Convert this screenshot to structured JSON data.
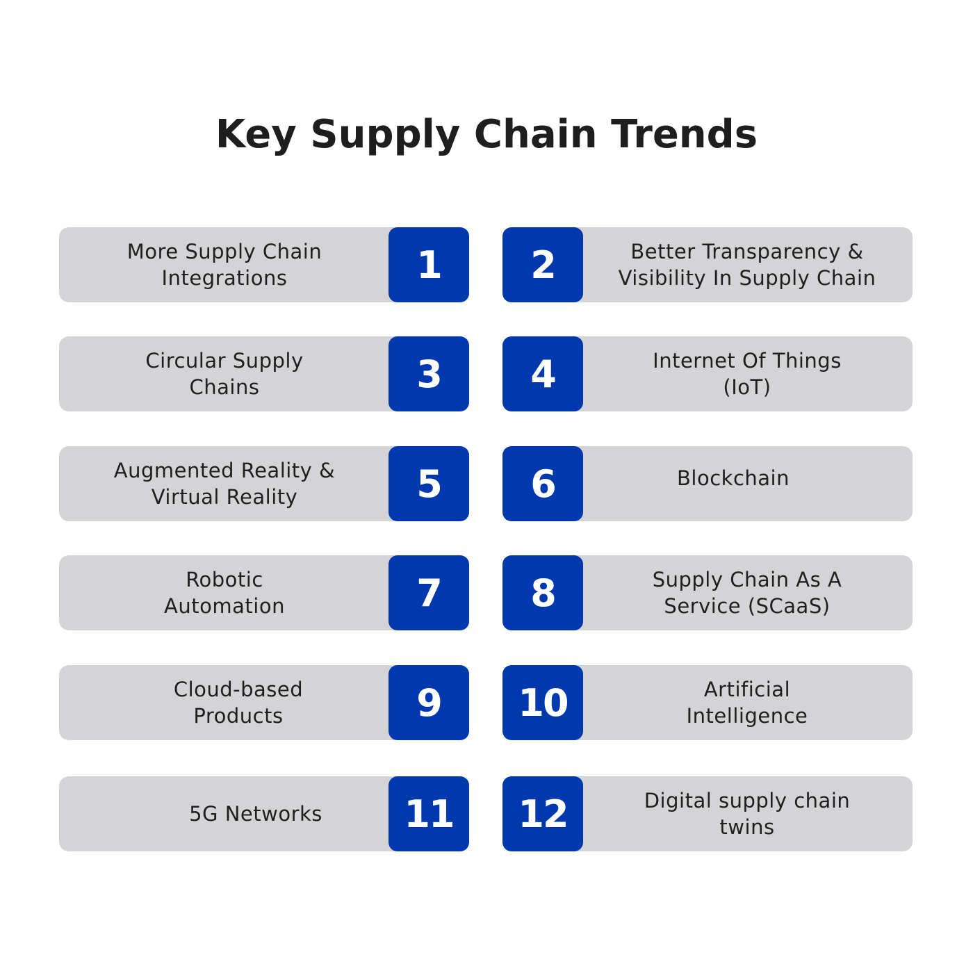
{
  "title": "Key Supply Chain Trends",
  "colors": {
    "card_background": "#d4d3d5",
    "number_badge": "#0038ae",
    "badge_text": "#ffffff",
    "title_text": "#1e1e1e"
  },
  "trends": [
    {
      "number": "1",
      "label": "More Supply Chain Integrations"
    },
    {
      "number": "2",
      "label": "Better Transparency & Visibility In Supply Chain"
    },
    {
      "number": "3",
      "label": "Circular Supply Chains"
    },
    {
      "number": "4",
      "label": "Internet Of Things (IoT)"
    },
    {
      "number": "5",
      "label": "Augmented Reality & Virtual Reality"
    },
    {
      "number": "6",
      "label": "Blockchain"
    },
    {
      "number": "7",
      "label": "Robotic Automation"
    },
    {
      "number": "8",
      "label": "Supply Chain As A Service (SCaaS)"
    },
    {
      "number": "9",
      "label": "Cloud-based Products"
    },
    {
      "number": "10",
      "label": "Artificial Intelligence"
    },
    {
      "number": "11",
      "label": "5G Networks"
    },
    {
      "number": "12",
      "label": "Digital supply chain twins"
    }
  ]
}
